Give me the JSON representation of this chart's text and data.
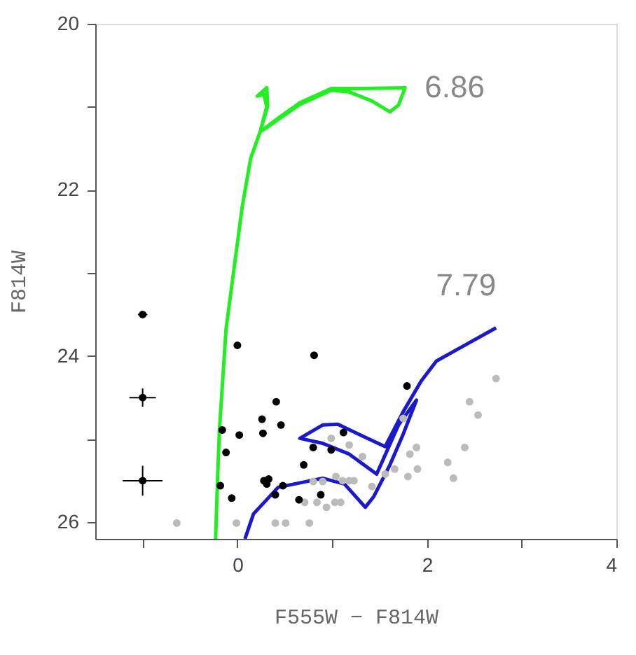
{
  "chart_data": {
    "type": "scatter",
    "xlabel": "F555W − F814W",
    "ylabel": "F814W",
    "xlim": [
      -1.5,
      4
    ],
    "ylim": [
      26.2,
      20
    ],
    "xticks": [
      {
        "value": -1,
        "label": null
      },
      0,
      {
        "value": 1,
        "label": null
      },
      2,
      {
        "value": 3,
        "label": null
      },
      4
    ],
    "yticks": [
      20,
      {
        "value": 21,
        "label": null
      },
      22,
      {
        "value": 23,
        "label": null
      },
      24,
      {
        "value": 25,
        "label": null
      },
      26
    ],
    "grid": false,
    "series": [
      {
        "type": "line",
        "name": "6.86",
        "marker": "none",
        "color": "#22ee22",
        "line_style": "solid",
        "x": [
          -0.23,
          -0.21,
          -0.19,
          -0.15,
          -0.12,
          -0.03,
          0.05,
          0.14,
          0.24,
          0.31,
          0.28,
          0.21,
          0.31,
          0.32,
          0.24,
          0.45,
          0.66,
          0.99,
          1.3,
          1.77,
          1.7,
          1.61,
          1.42,
          1.18,
          0.99,
          0.66,
          0.27
        ],
        "values": [
          26.2,
          25.5,
          24.9,
          24.2,
          23.68,
          22.9,
          22.21,
          21.62,
          21.3,
          21.0,
          20.85,
          20.87,
          20.77,
          20.99,
          21.3,
          21.12,
          20.95,
          20.78,
          20.78,
          20.77,
          20.98,
          21.06,
          20.93,
          20.82,
          20.8,
          20.97,
          21.28
        ]
      },
      {
        "type": "line",
        "name": "7.79",
        "marker": "none",
        "color": "#1a1acc",
        "line_style": "solid",
        "x": [
          0.08,
          0.17,
          0.43,
          0.9,
          1.13,
          1.35,
          1.44,
          1.61,
          1.75,
          1.89,
          1.7,
          1.47,
          1.18,
          0.9,
          0.66,
          0.9,
          1.06,
          1.28,
          1.56,
          1.75,
          1.94,
          2.1,
          2.32,
          2.73
        ],
        "values": [
          26.2,
          25.9,
          25.58,
          25.47,
          25.54,
          25.82,
          25.69,
          25.31,
          24.94,
          24.53,
          24.83,
          25.42,
          25.18,
          25.05,
          24.99,
          24.83,
          24.82,
          24.94,
          25.09,
          24.67,
          24.3,
          24.06,
          23.92,
          23.66
        ]
      },
      {
        "marker": "circle",
        "color": "#bbbbbb",
        "x": [
          -0.64,
          -0.01,
          0.4,
          0.51,
          0.76,
          0.71,
          0.84,
          0.94,
          1.03,
          1.09,
          0.8,
          0.9,
          1.04,
          1.11,
          1.18,
          1.23,
          0.99,
          1.18,
          1.32,
          1.42,
          1.56,
          1.66,
          1.75,
          1.82,
          1.89,
          1.8,
          1.9,
          2.22,
          2.28,
          2.4,
          2.45,
          2.54,
          2.73
        ],
        "values": [
          26.01,
          26.01,
          26.01,
          26.01,
          26.01,
          25.76,
          25.76,
          25.82,
          25.76,
          25.76,
          25.51,
          25.51,
          25.45,
          25.5,
          25.5,
          25.5,
          24.99,
          25.07,
          25.21,
          25.57,
          25.42,
          25.36,
          24.75,
          25.18,
          25.1,
          25.45,
          25.36,
          25.28,
          25.47,
          25.1,
          24.55,
          24.71,
          24.27
        ]
      },
      {
        "marker": "circle",
        "color": "#000000",
        "x": [
          0.0,
          0.81,
          1.79,
          0.41,
          0.26,
          0.46,
          -0.16,
          0.02,
          0.27,
          1.12,
          -0.12,
          0.8,
          0.99,
          0.7,
          -0.18,
          0.28,
          0.33,
          0.31,
          0.48,
          0.4,
          -0.06,
          0.65,
          0.88
        ],
        "values": [
          23.87,
          23.99,
          24.36,
          24.55,
          24.76,
          24.83,
          24.89,
          24.95,
          24.93,
          24.92,
          25.16,
          25.1,
          25.13,
          25.31,
          25.56,
          25.5,
          25.48,
          25.54,
          25.56,
          25.67,
          25.71,
          25.73,
          25.67
        ]
      },
      {
        "marker": "circle",
        "color": "#000000",
        "x": [
          -1.0,
          -1.0,
          -1.0
        ],
        "values": [
          23.5,
          24.5,
          25.5
        ],
        "errors": [
          0.03,
          0.11,
          0.18
        ],
        "xerrors": [
          0.05,
          0.14,
          0.21
        ]
      }
    ]
  }
}
